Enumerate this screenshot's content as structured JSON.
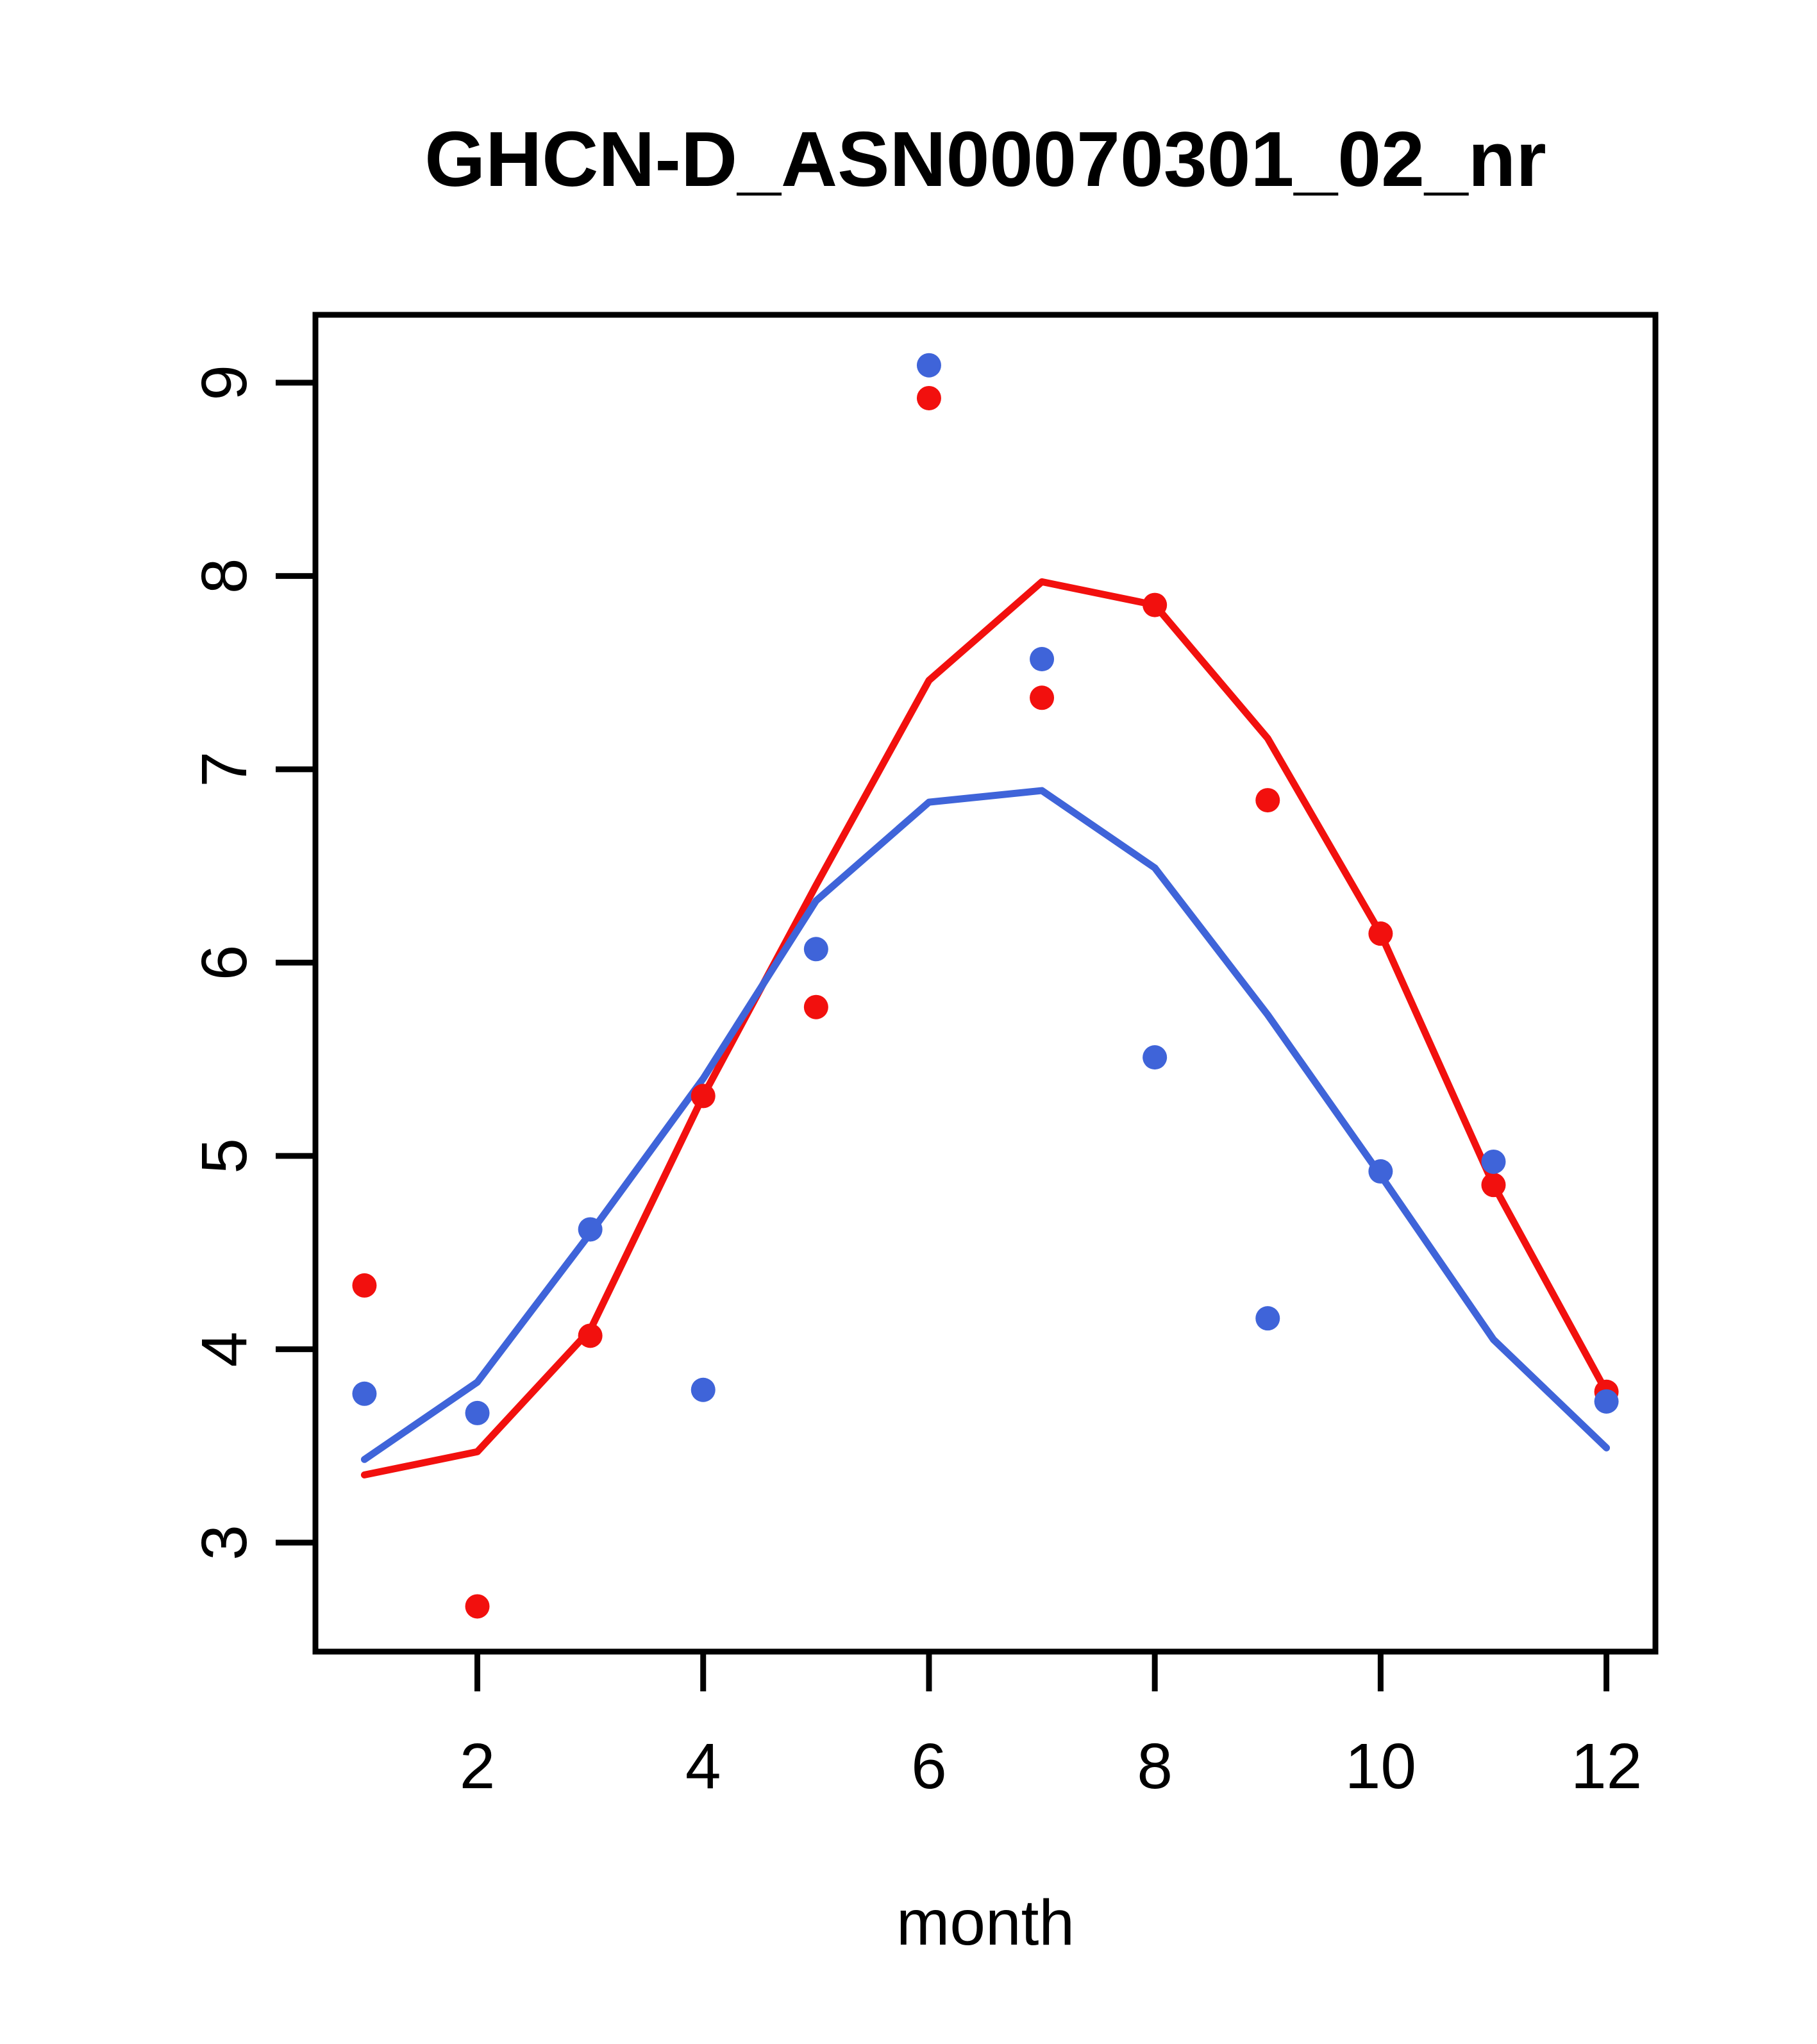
{
  "title": "GHCN-D_ASN00070301_02_nr",
  "colors": {
    "red_series": "#f2100e",
    "blue_series": "#3f64d9",
    "axis": "#000000",
    "background": "#ffffff"
  },
  "chart_data": {
    "type": "line",
    "title": "GHCN-D_ASN00070301_02_nr",
    "xlabel": "month",
    "ylabel": "",
    "x": [
      1,
      2,
      3,
      4,
      5,
      6,
      7,
      8,
      9,
      10,
      11,
      12
    ],
    "x_tick_values": [
      2,
      4,
      6,
      8,
      10,
      12
    ],
    "x_tick_labels": [
      "2",
      "4",
      "6",
      "8",
      "10",
      "12"
    ],
    "y_tick_values": [
      3,
      4,
      5,
      6,
      7,
      8,
      9
    ],
    "y_tick_labels": [
      "3",
      "4",
      "5",
      "6",
      "7",
      "8",
      "9"
    ],
    "xlim": [
      0.566,
      12.434
    ],
    "ylim": [
      2.436,
      9.351
    ],
    "grid": false,
    "legend_position": "none",
    "series": [
      {
        "name": "red line (smoothed monthly curve)",
        "kind": "line",
        "color": "#f2100e",
        "values": [
          3.35,
          3.47,
          4.1,
          5.31,
          6.4,
          7.46,
          7.97,
          7.85,
          7.16,
          6.15,
          4.85,
          3.78
        ]
      },
      {
        "name": "blue line (smoothed monthly curve)",
        "kind": "line",
        "color": "#3f64d9",
        "values": [
          3.43,
          3.83,
          4.6,
          5.4,
          6.32,
          6.83,
          6.89,
          6.49,
          5.73,
          4.9,
          4.05,
          3.49
        ]
      },
      {
        "name": "red points (monthly values)",
        "kind": "scatter",
        "color": "#f2100e",
        "values": [
          4.33,
          2.67,
          4.07,
          5.31,
          5.77,
          8.92,
          7.37,
          7.85,
          6.84,
          6.15,
          4.85,
          3.78
        ]
      },
      {
        "name": "blue points (monthly values)",
        "kind": "scatter",
        "color": "#3f64d9",
        "values": [
          3.77,
          3.67,
          4.62,
          3.79,
          6.07,
          9.09,
          7.57,
          5.51,
          4.16,
          4.92,
          4.97,
          3.73
        ]
      }
    ]
  }
}
